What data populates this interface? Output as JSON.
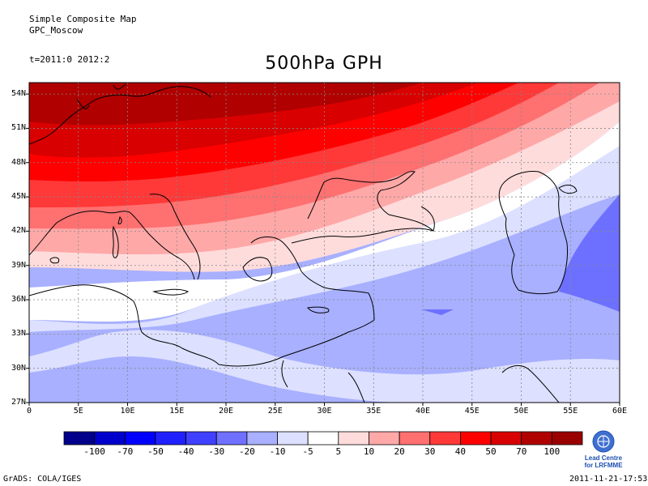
{
  "header": {
    "line1": "Simple Composite Map",
    "line2": "GPC_Moscow",
    "time": "t=2011:0 2012:2",
    "title": "500hPa GPH"
  },
  "footer": {
    "left": "GrADS: COLA/IGES",
    "right": "2011-11-21-17:53",
    "logo_line1": "Lead Centre",
    "logo_line2": "for LRFMME"
  },
  "map": {
    "lon_ticks": [
      "0",
      "5E",
      "10E",
      "15E",
      "20E",
      "25E",
      "30E",
      "35E",
      "40E",
      "45E",
      "50E",
      "55E",
      "60E"
    ],
    "lat_ticks": [
      "54N",
      "51N",
      "48N",
      "45N",
      "42N",
      "39N",
      "36N",
      "33N",
      "30N",
      "27N"
    ],
    "lon_range": [
      0,
      60
    ],
    "lat_range": [
      27,
      55
    ],
    "grid": true
  },
  "legend": {
    "labels": [
      "-100",
      "-70",
      "-50",
      "-40",
      "-30",
      "-20",
      "-10",
      "-5",
      "5",
      "10",
      "20",
      "30",
      "40",
      "50",
      "70",
      "100"
    ],
    "colors": [
      "#00008b",
      "#0000cd",
      "#0000ff",
      "#2020ff",
      "#4040ff",
      "#7070ff",
      "#a8b0ff",
      "#dde0ff",
      "#ffffff",
      "#ffdcdc",
      "#ffa8a8",
      "#ff7070",
      "#ff3838",
      "#ff0000",
      "#d80000",
      "#b00000",
      "#9a0000"
    ]
  },
  "fill_colors": {
    "land_blue1": "#dde0ff",
    "land_blue2": "#a8b0ff",
    "land_blue3": "#6d70ff",
    "red1": "#ffdcdc",
    "red2": "#ffa8a8",
    "red3": "#ff7070",
    "red4": "#ff3838",
    "red5": "#ff0000",
    "red6": "#d80000",
    "red7": "#b00000"
  }
}
